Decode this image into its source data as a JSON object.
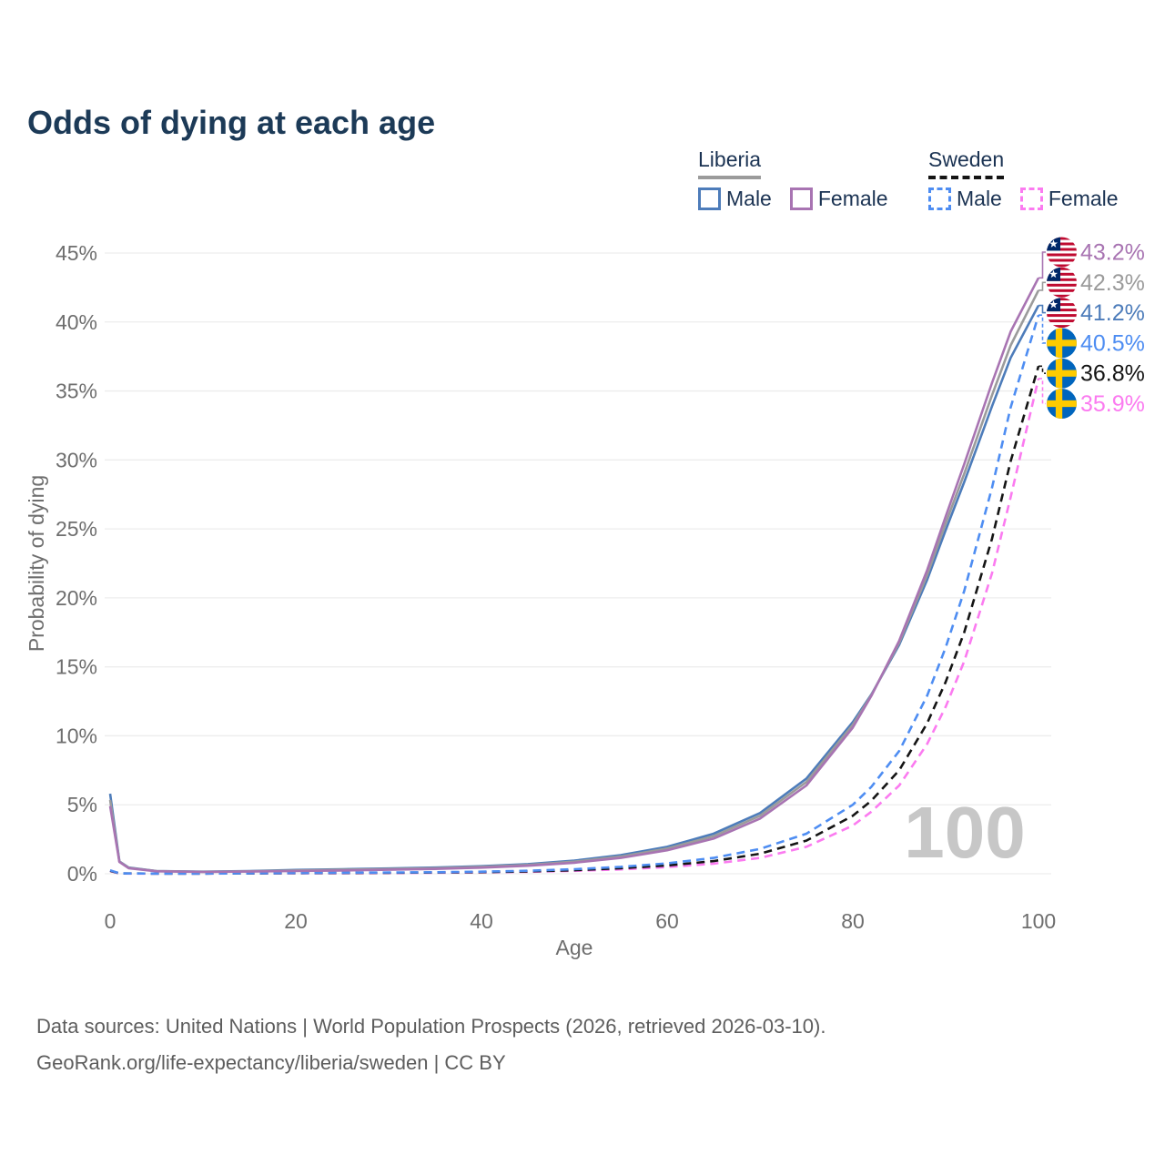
{
  "title": "Odds of dying at each age",
  "legend": {
    "groups": [
      {
        "name": "Liberia",
        "dashed": false,
        "underline_color": "#9b9b9b",
        "items": [
          {
            "label": "Male",
            "color": "#4d7cba"
          },
          {
            "label": "Female",
            "color": "#a874b2"
          }
        ]
      },
      {
        "name": "Sweden",
        "dashed": true,
        "underline_color": "#141414",
        "items": [
          {
            "label": "Male",
            "color": "#4e8df2"
          },
          {
            "label": "Female",
            "color": "#fb7bf0"
          }
        ]
      }
    ]
  },
  "chart_data": {
    "type": "line",
    "title": "Odds of dying at each age",
    "xlabel": "Age",
    "ylabel": "Probability of dying",
    "x_ticks": [
      0,
      20,
      40,
      60,
      80,
      100
    ],
    "y_ticks": [
      0,
      5,
      10,
      15,
      20,
      25,
      30,
      35,
      40,
      45
    ],
    "y_tick_suffix": "%",
    "xlim": [
      0,
      100
    ],
    "ylim": [
      0,
      47
    ],
    "grid": "horizontal",
    "watermark": "100",
    "legend_position": "top-right",
    "ages": [
      0,
      1,
      2,
      5,
      10,
      15,
      20,
      25,
      30,
      35,
      40,
      45,
      50,
      55,
      60,
      65,
      70,
      75,
      80,
      82,
      85,
      88,
      90,
      92,
      95,
      97,
      100
    ],
    "series": [
      {
        "id": "liberia-female",
        "name": "Liberia Female",
        "country": "Liberia",
        "sex": "Female",
        "color": "#a874b2",
        "dashed": false,
        "flag": "liberia",
        "end_label": "43.2%",
        "end_value": 43.2,
        "values": [
          4.9,
          0.85,
          0.4,
          0.18,
          0.13,
          0.16,
          0.2,
          0.24,
          0.29,
          0.35,
          0.44,
          0.58,
          0.8,
          1.15,
          1.7,
          2.55,
          4.0,
          6.4,
          10.6,
          12.9,
          16.9,
          22.0,
          25.9,
          29.7,
          35.6,
          39.3,
          43.2
        ]
      },
      {
        "id": "liberia-all",
        "name": "Liberia Both sexes",
        "country": "Liberia",
        "sex": "All",
        "color": "#9b9b9b",
        "dashed": false,
        "flag": "liberia",
        "end_label": "42.3%",
        "end_value": 42.3,
        "values": [
          5.35,
          0.88,
          0.43,
          0.19,
          0.14,
          0.18,
          0.24,
          0.29,
          0.34,
          0.4,
          0.5,
          0.64,
          0.88,
          1.25,
          1.83,
          2.72,
          4.2,
          6.65,
          10.8,
          12.95,
          16.75,
          21.65,
          25.4,
          29.0,
          34.7,
          38.3,
          42.3
        ]
      },
      {
        "id": "liberia-male",
        "name": "Liberia Male",
        "country": "Liberia",
        "sex": "Male",
        "color": "#4d7cba",
        "dashed": false,
        "flag": "liberia",
        "end_label": "41.2%",
        "end_value": 41.2,
        "values": [
          5.8,
          0.9,
          0.45,
          0.2,
          0.15,
          0.2,
          0.28,
          0.33,
          0.38,
          0.45,
          0.55,
          0.7,
          0.95,
          1.35,
          1.95,
          2.9,
          4.4,
          6.9,
          11.0,
          13.0,
          16.6,
          21.3,
          24.9,
          28.4,
          33.9,
          37.4,
          41.2
        ]
      },
      {
        "id": "sweden-male",
        "name": "Sweden Male",
        "country": "Sweden",
        "sex": "Male",
        "color": "#4e8df2",
        "dashed": true,
        "flag": "sweden",
        "end_label": "40.5%",
        "end_value": 40.5,
        "values": [
          0.25,
          0.03,
          0.02,
          0.01,
          0.01,
          0.03,
          0.06,
          0.08,
          0.09,
          0.11,
          0.15,
          0.22,
          0.33,
          0.5,
          0.75,
          1.15,
          1.8,
          2.9,
          5.0,
          6.3,
          8.9,
          12.9,
          16.4,
          20.5,
          28.0,
          33.8,
          40.5
        ]
      },
      {
        "id": "sweden-all",
        "name": "Sweden Both sexes",
        "country": "Sweden",
        "sex": "All",
        "color": "#141414",
        "dashed": true,
        "flag": "sweden",
        "end_label": "36.8%",
        "end_value": 36.8,
        "values": [
          0.22,
          0.025,
          0.018,
          0.01,
          0.01,
          0.025,
          0.045,
          0.06,
          0.07,
          0.09,
          0.12,
          0.17,
          0.26,
          0.4,
          0.6,
          0.92,
          1.45,
          2.4,
          4.2,
          5.3,
          7.5,
          10.9,
          13.9,
          17.5,
          24.3,
          29.9,
          36.8
        ]
      },
      {
        "id": "sweden-female",
        "name": "Sweden Female",
        "country": "Sweden",
        "sex": "Female",
        "color": "#fb7bf0",
        "dashed": true,
        "flag": "sweden",
        "end_label": "35.9%",
        "end_value": 35.9,
        "values": [
          0.2,
          0.02,
          0.015,
          0.01,
          0.01,
          0.02,
          0.03,
          0.04,
          0.05,
          0.07,
          0.1,
          0.14,
          0.21,
          0.32,
          0.48,
          0.73,
          1.15,
          1.95,
          3.5,
          4.5,
          6.4,
          9.4,
          12.1,
          15.4,
          21.8,
          27.3,
          35.9
        ]
      }
    ]
  },
  "footer": {
    "line1": "Data sources: United Nations | World Population Prospects (2026, retrieved 2026-03-10).",
    "line2": "GeoRank.org/life-expectancy/liberia/sweden | CC BY"
  }
}
